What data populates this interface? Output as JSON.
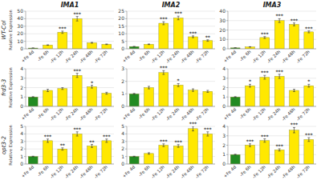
{
  "chart_data": [
    {
      "type": "bar",
      "title": "IMA1",
      "subtitle": "WT-Col",
      "ylabel": "Relative Expression",
      "categories": [
        "+Fe 4d",
        "-Fe 6h",
        "-Fe 12h",
        "-Fe 24h",
        "-Fe 48h",
        "-Fe 72h"
      ],
      "values": [
        1,
        5,
        22,
        40,
        8,
        6
      ],
      "errors": [
        0.05,
        0.3,
        1.5,
        3.0,
        0.5,
        0.4
      ],
      "annotations": [
        null,
        null,
        "***",
        "***",
        null,
        null
      ],
      "colors": [
        "#228B22",
        "#FFE800",
        "#FFE800",
        "#FFE800",
        "#FFE800",
        "#FFE800"
      ],
      "ylim": [
        0,
        50
      ],
      "yticks": [
        0,
        10,
        20,
        30,
        40,
        50
      ],
      "grid": true
    },
    {
      "type": "bar",
      "title": "IMA2",
      "categories": [
        "+Fe 4d",
        "-Fe 6h",
        "-Fe 12h",
        "-Fe 24h",
        "-Fe 48h",
        "-Fe 72h"
      ],
      "values": [
        1.5,
        3.0,
        17,
        20.5,
        8,
        5.5
      ],
      "errors": [
        0.08,
        0.2,
        1.0,
        1.2,
        0.6,
        0.5
      ],
      "annotations": [
        null,
        null,
        "***",
        "***",
        "***",
        "**"
      ],
      "colors": [
        "#228B22",
        "#FFE800",
        "#FFE800",
        "#FFE800",
        "#FFE800",
        "#FFE800"
      ],
      "ylim": [
        0,
        25
      ],
      "yticks": [
        0,
        5,
        10,
        15,
        20,
        25
      ],
      "grid": true
    },
    {
      "type": "bar",
      "title": "IMA3",
      "categories": [
        "+Fe 4d",
        "-Fe 6h",
        "-Fe 12h",
        "-Fe 24h",
        "-Fe 48h",
        "-Fe 72h"
      ],
      "values": [
        1,
        2,
        12,
        30,
        26,
        18
      ],
      "errors": [
        0.05,
        0.2,
        1.0,
        2.0,
        1.5,
        1.0
      ],
      "annotations": [
        null,
        null,
        "***",
        "***",
        "***",
        "***"
      ],
      "colors": [
        "#228B22",
        "#FFE800",
        "#FFE800",
        "#FFE800",
        "#FFE800",
        "#FFE800"
      ],
      "ylim": [
        0,
        40
      ],
      "yticks": [
        0,
        10,
        20,
        30,
        40
      ],
      "grid": true
    },
    {
      "type": "bar",
      "subtitle": "frd3-3",
      "ylabel": "Relative Expression",
      "categories": [
        "+Fe 4d",
        "-Fe 6h",
        "-Fe 12h",
        "-Fe 24h",
        "-Fe 48h",
        "-Fe 72h"
      ],
      "values": [
        1,
        1.7,
        1.9,
        3.3,
        2.1,
        1.4
      ],
      "errors": [
        0.04,
        0.12,
        0.1,
        0.22,
        0.15,
        0.1
      ],
      "annotations": [
        null,
        null,
        null,
        "***",
        "*",
        null
      ],
      "colors": [
        "#228B22",
        "#FFE800",
        "#FFE800",
        "#FFE800",
        "#FFE800",
        "#FFE800"
      ],
      "ylim": [
        0,
        4
      ],
      "yticks": [
        0,
        1,
        2,
        3,
        4
      ],
      "grid": true
    },
    {
      "type": "bar",
      "categories": [
        "+Fe 4d",
        "-Fe 6h",
        "-Fe 12h",
        "-Fe 24h",
        "-Fe 48h",
        "-Fe 72h"
      ],
      "values": [
        1,
        1.5,
        2.7,
        1.7,
        1.3,
        1.2
      ],
      "errors": [
        0.04,
        0.1,
        0.15,
        0.12,
        0.1,
        0.08
      ],
      "annotations": [
        null,
        null,
        "***",
        "*",
        null,
        null
      ],
      "colors": [
        "#228B22",
        "#FFE800",
        "#FFE800",
        "#FFE800",
        "#FFE800",
        "#FFE800"
      ],
      "ylim": [
        0,
        3
      ],
      "yticks": [
        0,
        1,
        2,
        3
      ],
      "grid": true
    },
    {
      "type": "bar",
      "categories": [
        "+Fe 4d",
        "-Fe 6h",
        "-Fe 12h",
        "-Fe 24h",
        "-Fe 48h",
        "-Fe 72h"
      ],
      "values": [
        1,
        2.2,
        3.1,
        3.2,
        1.7,
        2.2
      ],
      "errors": [
        0.04,
        0.15,
        0.2,
        0.22,
        0.12,
        0.15
      ],
      "annotations": [
        null,
        "*",
        "***",
        "***",
        null,
        "*"
      ],
      "colors": [
        "#228B22",
        "#FFE800",
        "#FFE800",
        "#FFE800",
        "#FFE800",
        "#FFE800"
      ],
      "ylim": [
        0,
        4
      ],
      "yticks": [
        0,
        1,
        2,
        3,
        4
      ],
      "grid": true
    },
    {
      "type": "bar",
      "subtitle": "opt3-2",
      "ylabel": "Relative Expression",
      "categories": [
        "+Fe 4d",
        "-Fe 6h",
        "-Fe 12h",
        "-Fe 24h",
        "-Fe 48h",
        "-Fe 72h"
      ],
      "values": [
        1,
        3.1,
        2.0,
        4.0,
        2.4,
        3.1
      ],
      "errors": [
        0.04,
        0.22,
        0.15,
        0.28,
        0.2,
        0.22
      ],
      "annotations": [
        null,
        "***",
        "**",
        "***",
        "**",
        "***"
      ],
      "colors": [
        "#228B22",
        "#FFE800",
        "#FFE800",
        "#FFE800",
        "#FFE800",
        "#FFE800"
      ],
      "ylim": [
        0,
        5
      ],
      "yticks": [
        0,
        1,
        2,
        3,
        4,
        5
      ],
      "grid": true
    },
    {
      "type": "bar",
      "categories": [
        "+Fe 4d",
        "-Fe 6h",
        "-Fe 12h",
        "-Fe 24h",
        "-Fe 48h",
        "-Fe 72h"
      ],
      "values": [
        1,
        1.4,
        2.5,
        2.4,
        4.7,
        4.0
      ],
      "errors": [
        0.04,
        0.1,
        0.18,
        0.18,
        0.3,
        0.28
      ],
      "annotations": [
        null,
        null,
        "***",
        "***",
        "***",
        "***"
      ],
      "colors": [
        "#228B22",
        "#FFE800",
        "#FFE800",
        "#FFE800",
        "#FFE800",
        "#FFE800"
      ],
      "ylim": [
        0,
        5
      ],
      "yticks": [
        0,
        1,
        2,
        3,
        4,
        5
      ],
      "grid": true
    },
    {
      "type": "bar",
      "categories": [
        "+Fe 4d",
        "-Fe 6h",
        "-Fe 12h",
        "-Fe 24h",
        "-Fe 48h",
        "-Fe 72h"
      ],
      "values": [
        1,
        2.0,
        2.5,
        1.5,
        3.6,
        2.6
      ],
      "errors": [
        0.04,
        0.15,
        0.18,
        0.12,
        0.28,
        0.2
      ],
      "annotations": [
        null,
        "***",
        "***",
        "***",
        "***",
        "***"
      ],
      "colors": [
        "#228B22",
        "#FFE800",
        "#FFE800",
        "#FFE800",
        "#FFE800",
        "#FFE800"
      ],
      "ylim": [
        0,
        4
      ],
      "yticks": [
        0,
        1,
        2,
        3,
        4
      ],
      "grid": true
    }
  ]
}
